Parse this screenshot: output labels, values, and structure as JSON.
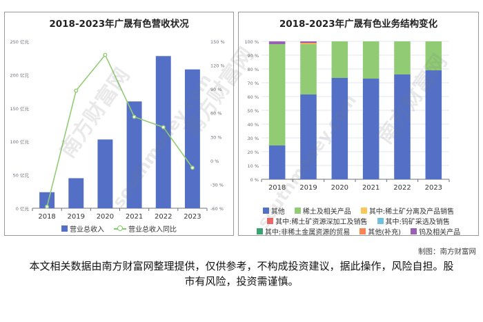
{
  "charts": {
    "left": {
      "title": "2018-2023年广晟有色营收状况",
      "legend": {
        "bar": "营业总收入",
        "line": "营业总收入同比"
      }
    },
    "right": {
      "title": "2018-2023年广晟有色业务结构变化"
    }
  },
  "chart_data": [
    {
      "type": "bar",
      "title": "2018-2023年广晟有色营收状况",
      "categories": [
        "2018",
        "2019",
        "2020",
        "2021",
        "2022",
        "2023"
      ],
      "series": [
        {
          "name": "营业总收入",
          "type": "bar",
          "axis": "left",
          "values": [
            24,
            45,
            103,
            160,
            228,
            208
          ]
        },
        {
          "name": "营业总收入同比",
          "type": "line",
          "axis": "right",
          "values": [
            -58,
            88,
            133,
            55,
            42,
            -9
          ]
        }
      ],
      "y_left": {
        "min": 0,
        "max": 250,
        "ticks": [
          "0 亿元",
          "50 亿元",
          "100 亿元",
          "150 亿元",
          "200 亿元",
          "250 亿元"
        ]
      },
      "y_right": {
        "min": -60,
        "max": 150,
        "ticks": [
          "-60 %",
          "-30 %",
          "0 %",
          "30 %",
          "60 %",
          "90 %",
          "120 %",
          "150 %"
        ]
      },
      "grid": false,
      "legend_position": "bottom",
      "colors": {
        "bar": "#5470c6",
        "line": "#91cc75"
      }
    },
    {
      "type": "bar",
      "stacked": true,
      "title": "2018-2023年广晟有色业务结构变化",
      "categories": [
        "2018",
        "2019",
        "2020",
        "2021",
        "2022",
        "2023"
      ],
      "series": [
        {
          "name": "其他",
          "color": "#5470c6",
          "values": [
            24.5,
            61.5,
            73.5,
            73,
            76,
            79
          ]
        },
        {
          "name": "稀土及相关产品",
          "color": "#91cc75",
          "values": [
            73.5,
            36.5,
            26.5,
            27,
            24,
            21
          ]
        },
        {
          "name": "其中:稀土矿分离及产品销售",
          "color": "#fac858",
          "values": [
            0,
            0.5,
            0,
            0,
            0,
            0
          ]
        },
        {
          "name": "其中:稀土矿资源深加工及销售",
          "color": "#ee6666",
          "values": [
            0,
            0,
            0,
            0,
            0,
            0
          ]
        },
        {
          "name": "其中:钨矿采选及销售",
          "color": "#73c0de",
          "values": [
            0,
            0,
            0,
            0,
            0,
            0
          ]
        },
        {
          "name": "其中:非稀土金属资源的贸易",
          "color": "#3ba272",
          "values": [
            0,
            0,
            0,
            0,
            0,
            0
          ]
        },
        {
          "name": "其他(补充)",
          "color": "#fc8452",
          "values": [
            0,
            0.5,
            0,
            0,
            0,
            0
          ]
        },
        {
          "name": "钨及相关产品",
          "color": "#9a60b4",
          "values": [
            2,
            1,
            0,
            0,
            0,
            0
          ]
        }
      ],
      "y": {
        "min": 0,
        "max": 100,
        "ticks": [
          "0 %",
          "10 %",
          "20 %",
          "30 %",
          "40 %",
          "50 %",
          "60 %",
          "70 %",
          "80 %",
          "90 %",
          "100 %"
        ]
      },
      "grid": true,
      "legend_position": "bottom"
    }
  ],
  "credit": "制图：南方财富网",
  "disclaimer": "本文相关数据由南方财富网整理提供，仅供参考，不构成投资建议，据此操作，风险自担。股市有风险，投资需谨慎。",
  "watermark": {
    "cn": "南方财富网",
    "en": "southmoney.com"
  }
}
